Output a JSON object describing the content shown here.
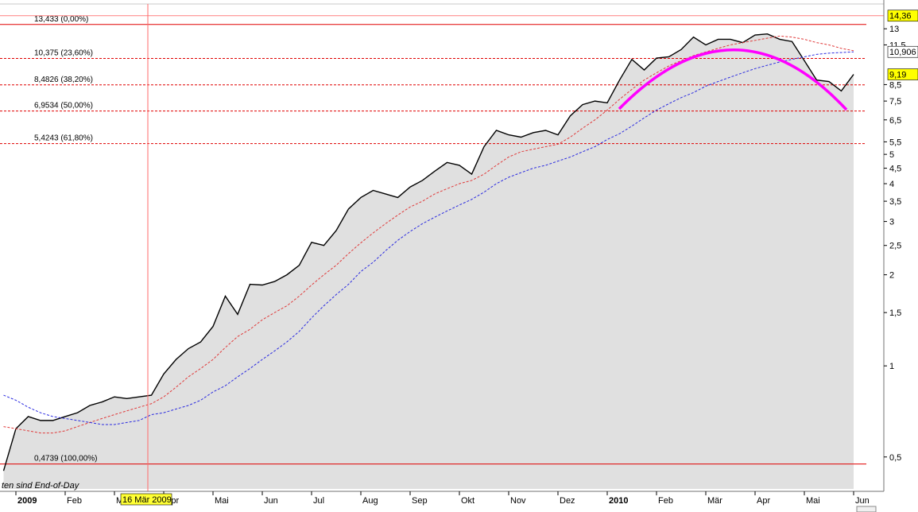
{
  "chart_data": {
    "type": "line",
    "log_scale": true,
    "categories": [
      null,
      "2009",
      null,
      null,
      null,
      "Feb",
      null,
      null,
      null,
      "Mär",
      null,
      null,
      null,
      "Apr",
      null,
      null,
      null,
      "Mai",
      null,
      null,
      null,
      "Jun",
      null,
      null,
      null,
      "Jul",
      null,
      null,
      null,
      "Aug",
      null,
      null,
      null,
      "Sep",
      null,
      null,
      null,
      "Okt",
      null,
      null,
      null,
      "Nov",
      null,
      null,
      null,
      "Dez",
      null,
      null,
      null,
      "2010",
      null,
      null,
      null,
      "Feb",
      null,
      null,
      null,
      "Mär",
      null,
      null,
      null,
      "Apr",
      null,
      null,
      null,
      "Mai",
      null,
      null,
      null,
      "Jun"
    ],
    "series": [
      {
        "color": "#000000",
        "fill": "#e0e0e0",
        "dashed": false,
        "values": [
          0.45,
          0.62,
          0.68,
          0.66,
          0.66,
          0.68,
          0.7,
          0.74,
          0.76,
          0.79,
          0.78,
          0.79,
          0.8,
          0.94,
          1.05,
          1.14,
          1.2,
          1.35,
          1.7,
          1.48,
          1.86,
          1.85,
          1.9,
          2.0,
          2.15,
          2.56,
          2.5,
          2.8,
          3.3,
          3.6,
          3.8,
          3.7,
          3.6,
          3.9,
          4.1,
          4.4,
          4.7,
          4.6,
          4.3,
          5.3,
          6.0,
          5.8,
          5.7,
          5.9,
          6.0,
          5.8,
          6.7,
          7.3,
          7.5,
          7.4,
          8.8,
          10.3,
          9.5,
          10.4,
          10.5,
          11.1,
          12.2,
          11.5,
          12.0,
          12.0,
          11.7,
          12.4,
          12.5,
          12.0,
          11.8,
          10.2,
          8.8,
          8.7,
          8.1,
          9.19
        ]
      },
      {
        "color": "#e03a3a",
        "dashed": true,
        "values": [
          0.63,
          0.62,
          0.61,
          0.6,
          0.6,
          0.61,
          0.63,
          0.65,
          0.67,
          0.69,
          0.71,
          0.73,
          0.75,
          0.79,
          0.85,
          0.92,
          0.98,
          1.05,
          1.15,
          1.25,
          1.32,
          1.42,
          1.5,
          1.58,
          1.7,
          1.85,
          2.0,
          2.15,
          2.35,
          2.55,
          2.75,
          2.95,
          3.15,
          3.35,
          3.5,
          3.7,
          3.85,
          4.0,
          4.1,
          4.3,
          4.6,
          4.9,
          5.1,
          5.2,
          5.3,
          5.4,
          5.7,
          6.1,
          6.5,
          7.0,
          7.6,
          8.2,
          8.8,
          9.3,
          9.8,
          10.2,
          10.6,
          10.9,
          11.2,
          11.5,
          11.7,
          11.9,
          12.1,
          12.3,
          12.2,
          12.0,
          11.7,
          11.5,
          11.2,
          11.0
        ]
      },
      {
        "color": "#2a2ae0",
        "dashed": true,
        "values": [
          0.8,
          0.77,
          0.73,
          0.7,
          0.68,
          0.67,
          0.66,
          0.65,
          0.64,
          0.64,
          0.65,
          0.66,
          0.69,
          0.7,
          0.72,
          0.74,
          0.77,
          0.82,
          0.86,
          0.92,
          0.98,
          1.05,
          1.12,
          1.2,
          1.3,
          1.44,
          1.58,
          1.72,
          1.86,
          2.05,
          2.2,
          2.4,
          2.6,
          2.78,
          2.95,
          3.1,
          3.25,
          3.4,
          3.55,
          3.75,
          4.0,
          4.2,
          4.35,
          4.5,
          4.6,
          4.75,
          4.9,
          5.1,
          5.3,
          5.6,
          5.85,
          6.2,
          6.6,
          7.0,
          7.35,
          7.7,
          8.0,
          8.4,
          8.7,
          9.0,
          9.3,
          9.6,
          9.85,
          10.1,
          10.3,
          10.5,
          10.7,
          10.8,
          10.85,
          10.906
        ]
      }
    ],
    "ylim": [
      0.392,
      15.7
    ],
    "yticks": [
      {
        "value": 0.5,
        "label": "0,5"
      },
      1,
      {
        "value": 1.5,
        "label": "1,5"
      },
      2,
      {
        "value": 2.5,
        "label": "2,5"
      },
      3,
      {
        "value": 3.5,
        "label": "3,5"
      },
      4,
      {
        "value": 4.5,
        "label": "4,5"
      },
      5,
      {
        "value": 5.5,
        "label": "5,5"
      },
      {
        "value": 6.5,
        "label": "6,5"
      },
      {
        "value": 7.5,
        "label": "7,5"
      },
      {
        "value": 8.5,
        "label": "8,5"
      },
      {
        "value": 11.5,
        "label": "11,5"
      },
      13
    ],
    "fib_levels": [
      {
        "value": 13.433,
        "label": "13,433 (0,00%)",
        "style": "solid"
      },
      {
        "value": 10.375,
        "label": "10,375 (23,60%)",
        "style": "dashed"
      },
      {
        "value": 8.4826,
        "label": "8,4826 (38,20%)",
        "style": "dashed"
      },
      {
        "value": 6.9534,
        "label": "6,9534 (50,00%)",
        "style": "dashed"
      },
      {
        "value": 5.4243,
        "label": "5,4243 (61,80%)",
        "style": "dashed"
      },
      {
        "value": 0.4739,
        "label": "0,4739 (100,00%)",
        "style": "solid"
      }
    ],
    "price_labels": [
      {
        "value": 14.36,
        "label": "14,36",
        "color": "#ffff00"
      },
      {
        "value": 10.906,
        "label": "10,906",
        "color": "#ffffff"
      },
      {
        "value": 9.19,
        "label": "9,19",
        "color": "#ffff00"
      }
    ],
    "crosshair_label": "16 Mär 2009",
    "note": "ten sind End-of-Day"
  }
}
